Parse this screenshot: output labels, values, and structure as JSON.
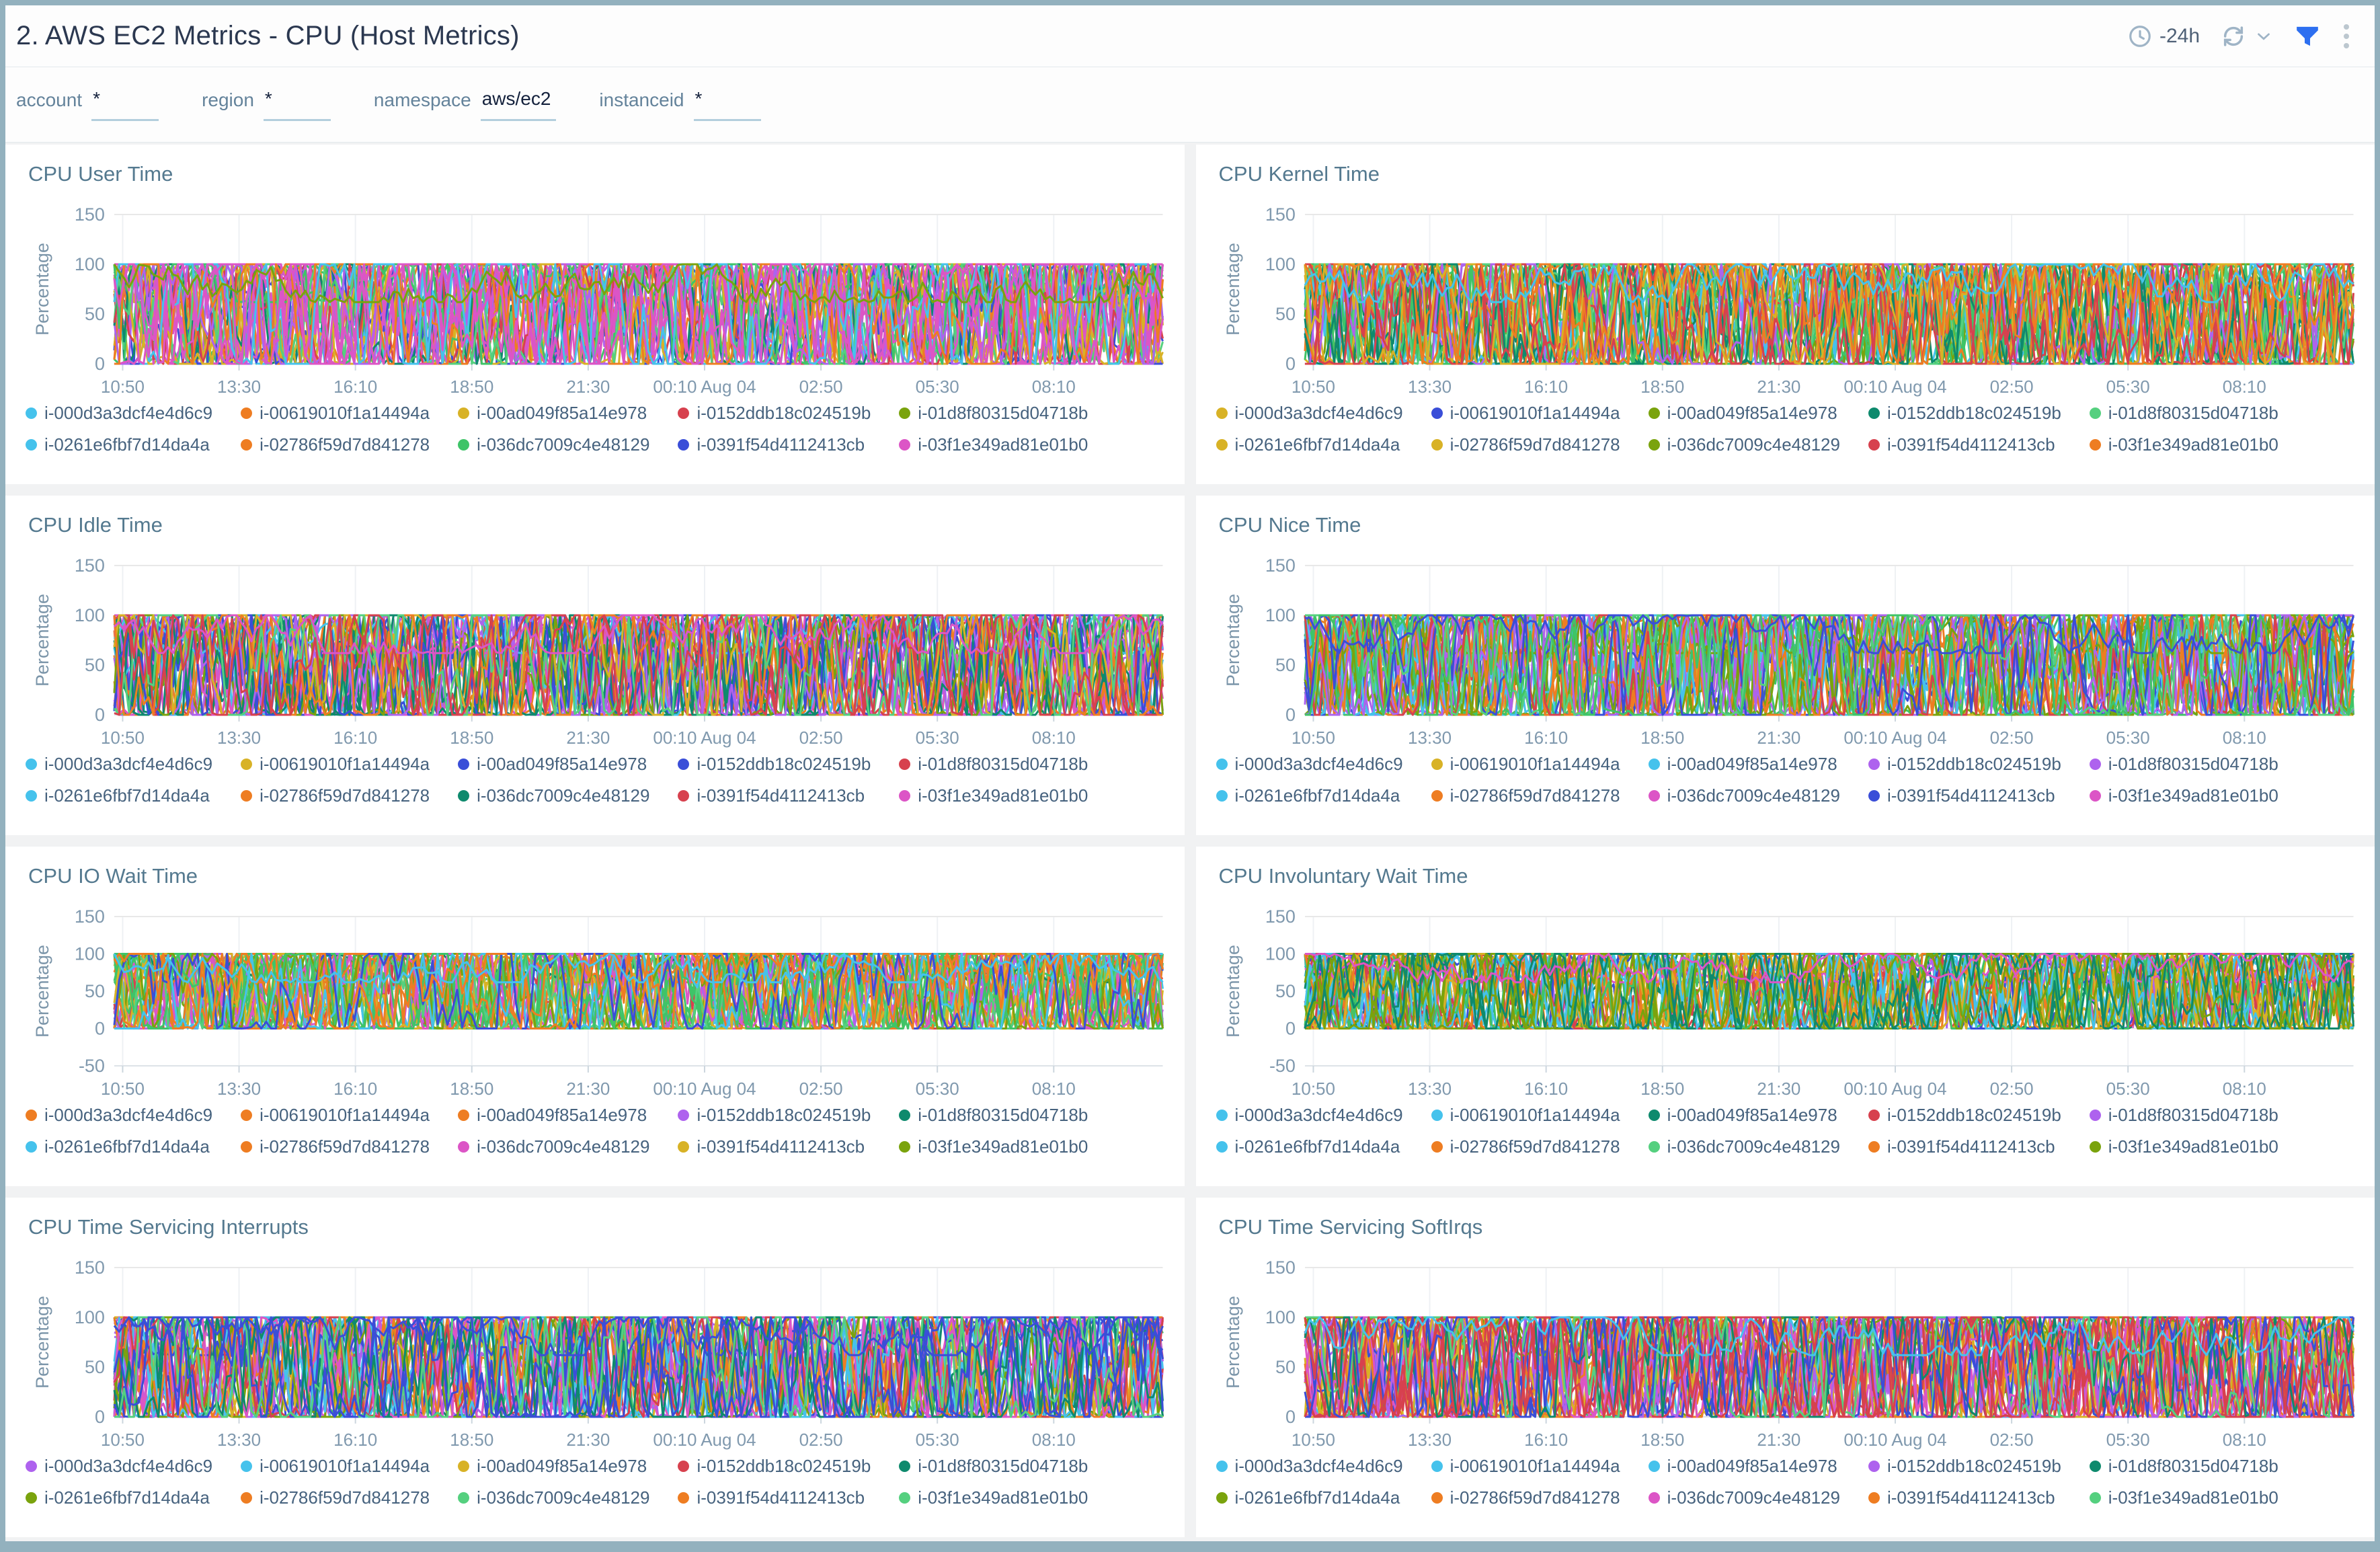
{
  "header": {
    "title": "2. AWS EC2 Metrics - CPU (Host Metrics)",
    "time_range": "-24h",
    "icons": [
      "clock-icon",
      "refresh-icon",
      "chevron-down-icon",
      "filter-icon",
      "kebab-menu-icon"
    ],
    "filter_icon_color": "#2d6ff0",
    "icon_color": "#9fb4c6"
  },
  "filters": [
    {
      "label": "account",
      "value": "*"
    },
    {
      "label": "region",
      "value": "*"
    },
    {
      "label": "namespace",
      "value": "aws/ec2"
    },
    {
      "label": "instanceid",
      "value": "*"
    }
  ],
  "palette": {
    "cyan": "#45c2ec",
    "orange": "#ee7d22",
    "gold": "#d8b226",
    "red": "#d7414e",
    "olive": "#7aa30d",
    "green": "#3fc468",
    "lightgreen": "#55d07f",
    "blue": "#3a4ed8",
    "magenta": "#dc55c6",
    "violet": "#ae62ee",
    "teal": "#0e8a6d"
  },
  "axes": {
    "ylabel": "Percentage",
    "x_ticks": [
      "10:50",
      "13:30",
      "16:10",
      "18:50",
      "21:30",
      "00:10 Aug 04",
      "02:50",
      "05:30",
      "08:10"
    ]
  },
  "chart_data": [
    {
      "type": "line",
      "title": "CPU User Time",
      "ylabel": "Percentage",
      "y_ticks": [
        150,
        100,
        50,
        0
      ],
      "ylim": [
        0,
        150
      ],
      "value_range": [
        0,
        100
      ],
      "series": [
        {
          "name": "i-000d3a3dcf4e4d6c9",
          "color": "cyan"
        },
        {
          "name": "i-00619010f1a14494a",
          "color": "orange"
        },
        {
          "name": "i-00ad049f85a14e978",
          "color": "gold"
        },
        {
          "name": "i-0152ddb18c024519b",
          "color": "red"
        },
        {
          "name": "i-01d8f80315d04718b",
          "color": "olive"
        },
        {
          "name": "i-0261e6fbf7d14da4a",
          "color": "cyan"
        },
        {
          "name": "i-02786f59d7d841278",
          "color": "orange"
        },
        {
          "name": "i-036dc7009c4e48129",
          "color": "green"
        },
        {
          "name": "i-0391f54d4112413cb",
          "color": "blue"
        },
        {
          "name": "i-03f1e349ad81e01b0",
          "color": "magenta"
        }
      ]
    },
    {
      "type": "line",
      "title": "CPU Kernel Time",
      "ylabel": "Percentage",
      "y_ticks": [
        150,
        100,
        50,
        0
      ],
      "ylim": [
        0,
        150
      ],
      "value_range": [
        0,
        100
      ],
      "series": [
        {
          "name": "i-000d3a3dcf4e4d6c9",
          "color": "gold"
        },
        {
          "name": "i-00619010f1a14494a",
          "color": "blue"
        },
        {
          "name": "i-00ad049f85a14e978",
          "color": "olive"
        },
        {
          "name": "i-0152ddb18c024519b",
          "color": "teal"
        },
        {
          "name": "i-01d8f80315d04718b",
          "color": "lightgreen"
        },
        {
          "name": "i-0261e6fbf7d14da4a",
          "color": "gold"
        },
        {
          "name": "i-02786f59d7d841278",
          "color": "gold"
        },
        {
          "name": "i-036dc7009c4e48129",
          "color": "olive"
        },
        {
          "name": "i-0391f54d4112413cb",
          "color": "red"
        },
        {
          "name": "i-03f1e349ad81e01b0",
          "color": "orange"
        }
      ]
    },
    {
      "type": "line",
      "title": "CPU Idle Time",
      "ylabel": "Percentage",
      "y_ticks": [
        150,
        100,
        50,
        0
      ],
      "ylim": [
        0,
        150
      ],
      "value_range": [
        0,
        100
      ],
      "series": [
        {
          "name": "i-000d3a3dcf4e4d6c9",
          "color": "cyan"
        },
        {
          "name": "i-00619010f1a14494a",
          "color": "gold"
        },
        {
          "name": "i-00ad049f85a14e978",
          "color": "blue"
        },
        {
          "name": "i-0152ddb18c024519b",
          "color": "blue"
        },
        {
          "name": "i-01d8f80315d04718b",
          "color": "red"
        },
        {
          "name": "i-0261e6fbf7d14da4a",
          "color": "cyan"
        },
        {
          "name": "i-02786f59d7d841278",
          "color": "orange"
        },
        {
          "name": "i-036dc7009c4e48129",
          "color": "teal"
        },
        {
          "name": "i-0391f54d4112413cb",
          "color": "red"
        },
        {
          "name": "i-03f1e349ad81e01b0",
          "color": "magenta"
        }
      ]
    },
    {
      "type": "line",
      "title": "CPU Nice Time",
      "ylabel": "Percentage",
      "y_ticks": [
        150,
        100,
        50,
        0
      ],
      "ylim": [
        0,
        150
      ],
      "value_range": [
        0,
        100
      ],
      "series": [
        {
          "name": "i-000d3a3dcf4e4d6c9",
          "color": "cyan"
        },
        {
          "name": "i-00619010f1a14494a",
          "color": "gold"
        },
        {
          "name": "i-00ad049f85a14e978",
          "color": "cyan"
        },
        {
          "name": "i-0152ddb18c024519b",
          "color": "violet"
        },
        {
          "name": "i-01d8f80315d04718b",
          "color": "violet"
        },
        {
          "name": "i-0261e6fbf7d14da4a",
          "color": "cyan"
        },
        {
          "name": "i-02786f59d7d841278",
          "color": "orange"
        },
        {
          "name": "i-036dc7009c4e48129",
          "color": "magenta"
        },
        {
          "name": "i-0391f54d4112413cb",
          "color": "blue"
        },
        {
          "name": "i-03f1e349ad81e01b0",
          "color": "magenta"
        }
      ]
    },
    {
      "type": "line",
      "title": "CPU IO Wait Time",
      "ylabel": "Percentage",
      "y_ticks": [
        150,
        100,
        50,
        0,
        -50
      ],
      "ylim": [
        -50,
        150
      ],
      "value_range": [
        0,
        100
      ],
      "series": [
        {
          "name": "i-000d3a3dcf4e4d6c9",
          "color": "orange"
        },
        {
          "name": "i-00619010f1a14494a",
          "color": "orange"
        },
        {
          "name": "i-00ad049f85a14e978",
          "color": "orange"
        },
        {
          "name": "i-0152ddb18c024519b",
          "color": "violet"
        },
        {
          "name": "i-01d8f80315d04718b",
          "color": "teal"
        },
        {
          "name": "i-0261e6fbf7d14da4a",
          "color": "cyan"
        },
        {
          "name": "i-02786f59d7d841278",
          "color": "orange"
        },
        {
          "name": "i-036dc7009c4e48129",
          "color": "magenta"
        },
        {
          "name": "i-0391f54d4112413cb",
          "color": "gold"
        },
        {
          "name": "i-03f1e349ad81e01b0",
          "color": "olive"
        }
      ]
    },
    {
      "type": "line",
      "title": "CPU Involuntary Wait Time",
      "ylabel": "Percentage",
      "y_ticks": [
        150,
        100,
        50,
        0,
        -50
      ],
      "ylim": [
        -50,
        150
      ],
      "value_range": [
        0,
        100
      ],
      "series": [
        {
          "name": "i-000d3a3dcf4e4d6c9",
          "color": "cyan"
        },
        {
          "name": "i-00619010f1a14494a",
          "color": "cyan"
        },
        {
          "name": "i-00ad049f85a14e978",
          "color": "teal"
        },
        {
          "name": "i-0152ddb18c024519b",
          "color": "red"
        },
        {
          "name": "i-01d8f80315d04718b",
          "color": "violet"
        },
        {
          "name": "i-0261e6fbf7d14da4a",
          "color": "cyan"
        },
        {
          "name": "i-02786f59d7d841278",
          "color": "orange"
        },
        {
          "name": "i-036dc7009c4e48129",
          "color": "lightgreen"
        },
        {
          "name": "i-0391f54d4112413cb",
          "color": "orange"
        },
        {
          "name": "i-03f1e349ad81e01b0",
          "color": "olive"
        }
      ]
    },
    {
      "type": "line",
      "title": "CPU Time Servicing Interrupts",
      "ylabel": "Percentage",
      "y_ticks": [
        150,
        100,
        50,
        0
      ],
      "ylim": [
        0,
        150
      ],
      "value_range": [
        0,
        100
      ],
      "series": [
        {
          "name": "i-000d3a3dcf4e4d6c9",
          "color": "violet"
        },
        {
          "name": "i-00619010f1a14494a",
          "color": "cyan"
        },
        {
          "name": "i-00ad049f85a14e978",
          "color": "gold"
        },
        {
          "name": "i-0152ddb18c024519b",
          "color": "red"
        },
        {
          "name": "i-01d8f80315d04718b",
          "color": "teal"
        },
        {
          "name": "i-0261e6fbf7d14da4a",
          "color": "olive"
        },
        {
          "name": "i-02786f59d7d841278",
          "color": "orange"
        },
        {
          "name": "i-036dc7009c4e48129",
          "color": "lightgreen"
        },
        {
          "name": "i-0391f54d4112413cb",
          "color": "orange"
        },
        {
          "name": "i-03f1e349ad81e01b0",
          "color": "lightgreen"
        }
      ]
    },
    {
      "type": "line",
      "title": "CPU Time Servicing SoftIrqs",
      "ylabel": "Percentage",
      "y_ticks": [
        150,
        100,
        50,
        0
      ],
      "ylim": [
        0,
        150
      ],
      "value_range": [
        0,
        100
      ],
      "series": [
        {
          "name": "i-000d3a3dcf4e4d6c9",
          "color": "cyan"
        },
        {
          "name": "i-00619010f1a14494a",
          "color": "cyan"
        },
        {
          "name": "i-00ad049f85a14e978",
          "color": "cyan"
        },
        {
          "name": "i-0152ddb18c024519b",
          "color": "violet"
        },
        {
          "name": "i-01d8f80315d04718b",
          "color": "teal"
        },
        {
          "name": "i-0261e6fbf7d14da4a",
          "color": "olive"
        },
        {
          "name": "i-02786f59d7d841278",
          "color": "orange"
        },
        {
          "name": "i-036dc7009c4e48129",
          "color": "magenta"
        },
        {
          "name": "i-0391f54d4112413cb",
          "color": "orange"
        },
        {
          "name": "i-03f1e349ad81e01b0",
          "color": "lightgreen"
        }
      ]
    }
  ]
}
